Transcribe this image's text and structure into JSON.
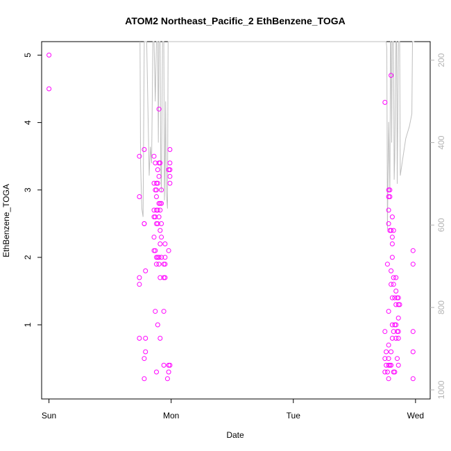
{
  "chart_data": {
    "type": "scatter",
    "title": "ATOM2 Northeast_Pacific_2 EthBenzene_TOGA",
    "xlabel": "Date",
    "ylabel": "EthBenzene_TOGA",
    "x_ticks": [
      {
        "label": "Sun",
        "day": 0
      },
      {
        "label": "Mon",
        "day": 1
      },
      {
        "label": "Tue",
        "day": 2
      },
      {
        "label": "Wed",
        "day": 3
      }
    ],
    "y_ticks": [
      1,
      2,
      3,
      4,
      5
    ],
    "y_right_ticks": [
      200,
      400,
      600,
      800,
      1000
    ],
    "xlim": [
      -0.06,
      3.12
    ],
    "ylim": [
      -0.1,
      5.2
    ],
    "y_right_lim": [
      155,
      1022
    ],
    "point_color": "#ff00ff",
    "line_color": "#bebebe",
    "right_axis_color": "#b3b3b3",
    "points": [
      [
        0.0,
        5.0
      ],
      [
        0.0,
        4.5
      ],
      [
        0.74,
        3.5
      ],
      [
        0.74,
        2.9
      ],
      [
        0.74,
        1.7
      ],
      [
        0.74,
        1.6
      ],
      [
        0.74,
        0.8
      ],
      [
        0.78,
        3.6
      ],
      [
        0.78,
        2.5
      ],
      [
        0.78,
        2.5
      ],
      [
        0.78,
        0.5
      ],
      [
        0.78,
        0.2
      ],
      [
        0.79,
        1.8
      ],
      [
        0.79,
        0.8
      ],
      [
        0.79,
        0.6
      ],
      [
        0.86,
        3.5
      ],
      [
        0.86,
        3.1
      ],
      [
        0.86,
        2.7
      ],
      [
        0.86,
        2.6
      ],
      [
        0.86,
        2.3
      ],
      [
        0.86,
        2.1
      ],
      [
        0.87,
        3.4
      ],
      [
        0.87,
        3.0
      ],
      [
        0.87,
        2.6
      ],
      [
        0.87,
        2.1
      ],
      [
        0.87,
        1.2
      ],
      [
        0.88,
        3.1
      ],
      [
        0.88,
        3.0
      ],
      [
        0.88,
        2.9
      ],
      [
        0.88,
        2.7
      ],
      [
        0.88,
        2.5
      ],
      [
        0.88,
        2.0
      ],
      [
        0.88,
        1.9
      ],
      [
        0.88,
        0.3
      ],
      [
        0.89,
        3.3
      ],
      [
        0.89,
        3.1
      ],
      [
        0.89,
        2.7
      ],
      [
        0.89,
        2.5
      ],
      [
        0.89,
        2.0
      ],
      [
        0.89,
        1.0
      ],
      [
        0.9,
        4.2
      ],
      [
        0.9,
        3.4
      ],
      [
        0.9,
        3.2
      ],
      [
        0.9,
        2.8
      ],
      [
        0.9,
        2.6
      ],
      [
        0.9,
        2.0
      ],
      [
        0.9,
        1.9
      ],
      [
        0.91,
        3.4
      ],
      [
        0.91,
        2.8
      ],
      [
        0.91,
        2.7
      ],
      [
        0.91,
        2.4
      ],
      [
        0.91,
        2.2
      ],
      [
        0.91,
        1.7
      ],
      [
        0.91,
        0.8
      ],
      [
        0.92,
        3.0
      ],
      [
        0.92,
        2.8
      ],
      [
        0.92,
        2.5
      ],
      [
        0.92,
        2.3
      ],
      [
        0.92,
        2.0
      ],
      [
        0.94,
        1.7
      ],
      [
        0.94,
        1.9
      ],
      [
        0.94,
        1.2
      ],
      [
        0.94,
        0.4
      ],
      [
        0.95,
        2.2
      ],
      [
        0.95,
        2.0
      ],
      [
        0.95,
        1.9
      ],
      [
        0.95,
        1.7
      ],
      [
        0.97,
        0.2
      ],
      [
        0.98,
        3.3
      ],
      [
        0.98,
        2.1
      ],
      [
        0.98,
        0.4
      ],
      [
        0.98,
        0.3
      ],
      [
        0.99,
        3.6
      ],
      [
        0.99,
        3.4
      ],
      [
        0.99,
        3.3
      ],
      [
        0.99,
        3.2
      ],
      [
        0.99,
        3.1
      ],
      [
        0.99,
        0.4
      ],
      [
        2.75,
        4.3
      ],
      [
        2.75,
        0.9
      ],
      [
        2.75,
        0.5
      ],
      [
        2.75,
        0.3
      ],
      [
        2.76,
        0.4
      ],
      [
        2.76,
        0.6
      ],
      [
        2.77,
        1.9
      ],
      [
        2.77,
        0.3
      ],
      [
        2.78,
        3.0
      ],
      [
        2.78,
        2.9
      ],
      [
        2.78,
        2.7
      ],
      [
        2.78,
        2.5
      ],
      [
        2.78,
        1.2
      ],
      [
        2.78,
        0.7
      ],
      [
        2.78,
        0.5
      ],
      [
        2.78,
        0.4
      ],
      [
        2.78,
        0.2
      ],
      [
        2.79,
        3.0
      ],
      [
        2.79,
        2.9
      ],
      [
        2.79,
        2.4
      ],
      [
        2.79,
        0.4
      ],
      [
        2.8,
        4.7
      ],
      [
        2.8,
        2.4
      ],
      [
        2.8,
        1.8
      ],
      [
        2.8,
        1.6
      ],
      [
        2.8,
        0.6
      ],
      [
        2.8,
        0.4
      ],
      [
        2.81,
        2.6
      ],
      [
        2.81,
        2.3
      ],
      [
        2.81,
        2.2
      ],
      [
        2.81,
        2.0
      ],
      [
        2.81,
        1.4
      ],
      [
        2.81,
        1.0
      ],
      [
        2.81,
        0.8
      ],
      [
        2.82,
        2.4
      ],
      [
        2.82,
        1.7
      ],
      [
        2.82,
        1.6
      ],
      [
        2.82,
        0.9
      ],
      [
        2.82,
        0.3
      ],
      [
        2.83,
        1.4
      ],
      [
        2.83,
        1.0
      ],
      [
        2.83,
        0.3
      ],
      [
        2.84,
        1.7
      ],
      [
        2.84,
        1.5
      ],
      [
        2.84,
        1.3
      ],
      [
        2.84,
        1.0
      ],
      [
        2.84,
        0.8
      ],
      [
        2.85,
        1.4
      ],
      [
        2.85,
        0.9
      ],
      [
        2.85,
        0.5
      ],
      [
        2.86,
        1.4
      ],
      [
        2.86,
        1.3
      ],
      [
        2.86,
        1.1
      ],
      [
        2.86,
        0.9
      ],
      [
        2.86,
        0.8
      ],
      [
        2.86,
        0.4
      ],
      [
        2.87,
        1.3
      ],
      [
        2.98,
        2.1
      ],
      [
        2.98,
        1.9
      ],
      [
        2.98,
        0.9
      ],
      [
        2.98,
        0.6
      ],
      [
        2.98,
        0.2
      ]
    ],
    "right_series": [
      [
        0.745,
        155
      ],
      [
        0.75,
        450
      ],
      [
        0.76,
        560
      ],
      [
        0.77,
        580
      ],
      [
        0.78,
        155
      ],
      [
        0.8,
        155
      ],
      [
        0.82,
        480
      ],
      [
        0.83,
        410
      ],
      [
        0.84,
        450
      ],
      [
        0.85,
        155
      ],
      [
        0.86,
        155
      ],
      [
        0.87,
        300
      ],
      [
        0.88,
        155
      ],
      [
        0.89,
        155
      ],
      [
        0.895,
        400
      ],
      [
        0.9,
        155
      ],
      [
        0.91,
        155
      ],
      [
        0.915,
        460
      ],
      [
        0.92,
        520
      ],
      [
        0.93,
        155
      ],
      [
        0.94,
        155
      ],
      [
        0.945,
        540
      ],
      [
        0.95,
        430
      ],
      [
        0.955,
        300
      ],
      [
        0.96,
        520
      ],
      [
        0.97,
        560
      ],
      [
        0.975,
        155
      ],
      [
        0.985,
        155
      ],
      [
        0.99,
        155
      ],
      [
        2.74,
        155
      ],
      [
        2.76,
        155
      ],
      [
        2.765,
        170
      ],
      [
        2.77,
        610
      ],
      [
        2.78,
        350
      ],
      [
        2.79,
        520
      ],
      [
        2.795,
        155
      ],
      [
        2.8,
        155
      ],
      [
        2.805,
        400
      ],
      [
        2.81,
        155
      ],
      [
        2.82,
        155
      ],
      [
        2.825,
        490
      ],
      [
        2.83,
        440
      ],
      [
        2.84,
        155
      ],
      [
        2.845,
        155
      ],
      [
        2.85,
        500
      ],
      [
        2.86,
        155
      ],
      [
        2.87,
        155
      ],
      [
        2.875,
        480
      ],
      [
        2.89,
        450
      ],
      [
        2.92,
        390
      ],
      [
        2.95,
        360
      ],
      [
        2.97,
        330
      ],
      [
        2.975,
        155
      ],
      [
        2.99,
        155
      ]
    ]
  }
}
